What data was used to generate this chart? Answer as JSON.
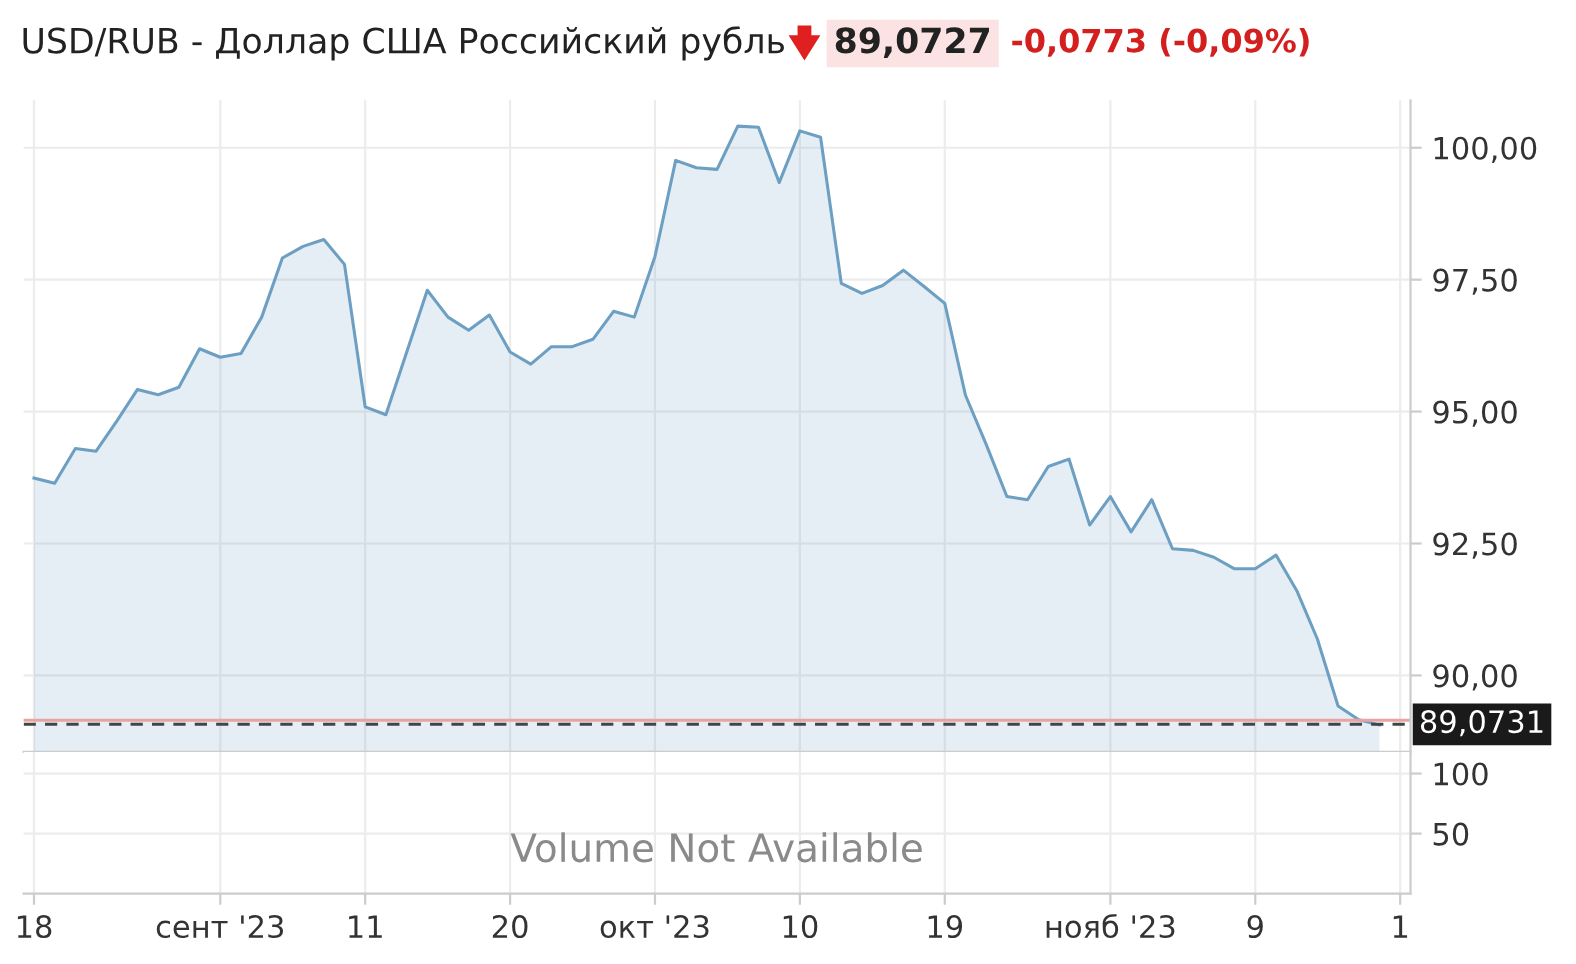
{
  "chart_data": [
    {
      "type": "area",
      "title": "USD/RUB - Доллар США Российский рубль",
      "annotations": [
        "89,0727",
        "-0,0773 (-0,09%)"
      ],
      "categories": [
        null,
        null,
        null,
        null,
        null,
        null,
        null,
        null,
        null,
        null,
        null,
        null,
        null,
        null,
        null,
        null,
        null,
        null,
        null,
        null,
        null,
        null,
        null,
        null,
        null,
        null,
        null,
        null,
        null,
        null,
        null,
        null,
        null,
        null,
        null,
        null,
        null,
        null,
        null,
        null,
        null,
        null,
        null,
        null,
        null,
        null,
        null,
        null,
        null,
        null,
        null,
        null,
        null,
        null,
        null,
        null,
        null,
        null,
        null,
        null,
        null,
        null,
        null,
        null,
        null,
        null
      ],
      "series": [
        {
          "color": "#6d9fc2",
          "values": [
            93.74,
            93.64,
            94.3,
            94.25,
            94.82,
            95.42,
            95.32,
            95.46,
            96.19,
            96.03,
            96.1,
            96.79,
            97.91,
            98.13,
            98.26,
            97.79,
            95.09,
            94.94,
            96.12,
            97.3,
            96.79,
            96.54,
            96.83,
            96.13,
            95.9,
            96.23,
            96.23,
            96.37,
            96.9,
            96.79,
            97.94,
            99.76,
            99.62,
            99.59,
            100.41,
            100.39,
            99.34,
            100.32,
            100.2,
            97.43,
            97.24,
            97.39,
            97.68,
            97.37,
            97.05,
            95.31,
            94.38,
            93.39,
            93.33,
            93.96,
            94.1,
            92.85,
            93.39,
            92.72,
            93.33,
            92.4,
            92.37,
            92.24,
            92.02,
            92.02,
            92.28,
            91.61,
            90.69,
            89.42,
            89.16,
            89.06
          ]
        }
      ],
      "ylim": [
        88.55,
        100.9
      ],
      "yticks": [
        {
          "value": 90,
          "label": "90,00"
        },
        {
          "value": 92.5,
          "label": "92,50"
        },
        {
          "value": 95,
          "label": "95,00"
        },
        {
          "value": 97.5,
          "label": "97,50"
        },
        {
          "value": 100,
          "label": "100,00"
        }
      ],
      "ref_lines": [
        {
          "axis": "y",
          "value": 89.15,
          "color": "#e8a3a3",
          "line_style": "solid"
        },
        {
          "axis": "y",
          "value": 89.0731,
          "label": "89,0731",
          "color": "#444444",
          "line_style": "dashed"
        }
      ],
      "grid": true,
      "tick_labels": "y"
    },
    {
      "type": "bar",
      "annotations": [
        "Volume Not Available"
      ],
      "categories": [
        "18",
        null,
        null,
        null,
        null,
        null,
        null,
        null,
        null,
        "сент '23",
        null,
        null,
        null,
        null,
        null,
        null,
        "11",
        null,
        null,
        null,
        null,
        null,
        null,
        "20",
        null,
        null,
        null,
        null,
        null,
        null,
        "окт '23",
        null,
        null,
        null,
        null,
        null,
        null,
        "10",
        null,
        null,
        null,
        null,
        null,
        null,
        "19",
        null,
        null,
        null,
        null,
        null,
        null,
        null,
        "нояб '23",
        null,
        null,
        null,
        null,
        null,
        null,
        "9",
        null,
        null,
        null,
        null,
        null,
        null,
        "1"
      ],
      "values": [
        null,
        null,
        null,
        null,
        null,
        null,
        null,
        null,
        null,
        null,
        null,
        null,
        null,
        null,
        null,
        null,
        null,
        null,
        null,
        null,
        null,
        null,
        null,
        null,
        null,
        null,
        null,
        null,
        null,
        null,
        null,
        null,
        null,
        null,
        null,
        null,
        null,
        null,
        null,
        null,
        null,
        null,
        null,
        null,
        null,
        null,
        null,
        null,
        null,
        null,
        null,
        null,
        null,
        null,
        null,
        null,
        null,
        null,
        null,
        null,
        null,
        null,
        null,
        null,
        null,
        null,
        null
      ],
      "ylim": [
        0,
        118
      ],
      "yticks": [
        50,
        100
      ],
      "grid": true
    }
  ]
}
